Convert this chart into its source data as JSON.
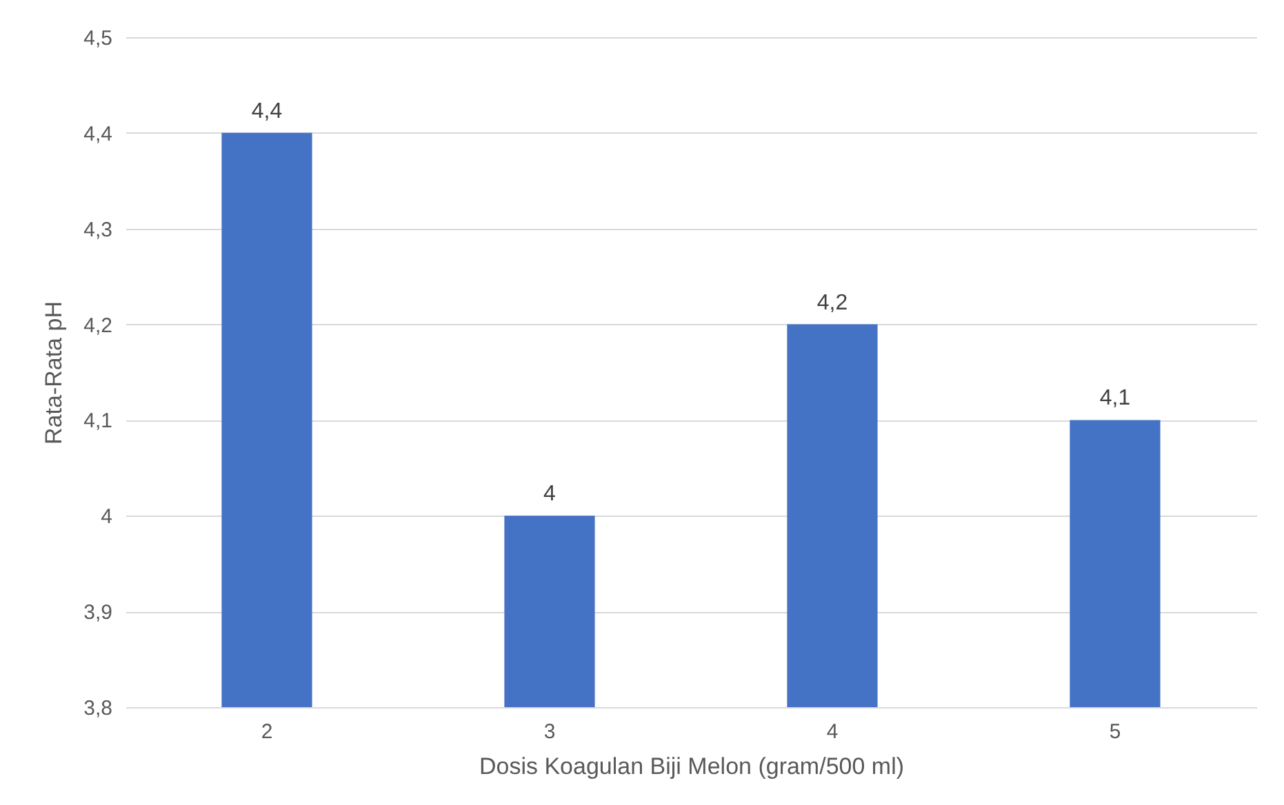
{
  "chart_data": {
    "type": "bar",
    "xlabel": "Dosis Koagulan Biji Melon (gram/500 ml)",
    "ylabel": "Rata-Rata pH",
    "categories": [
      "2",
      "3",
      "4",
      "5"
    ],
    "values": [
      4.4,
      4.0,
      4.2,
      4.1
    ],
    "value_labels": [
      "4,4",
      "4",
      "4,2",
      "4,1"
    ],
    "color": "#4472c4",
    "ylim": [
      3.8,
      4.5
    ],
    "yticks": [
      {
        "value": 3.8,
        "label": "3,8"
      },
      {
        "value": 3.9,
        "label": "3,9"
      },
      4,
      {
        "value": 4.1,
        "label": "4,1"
      },
      {
        "value": 4.2,
        "label": "4,2"
      },
      {
        "value": 4.3,
        "label": "4,3"
      },
      {
        "value": 4.4,
        "label": "4,4"
      },
      {
        "value": 4.5,
        "label": "4,5"
      }
    ],
    "grid": "y"
  }
}
